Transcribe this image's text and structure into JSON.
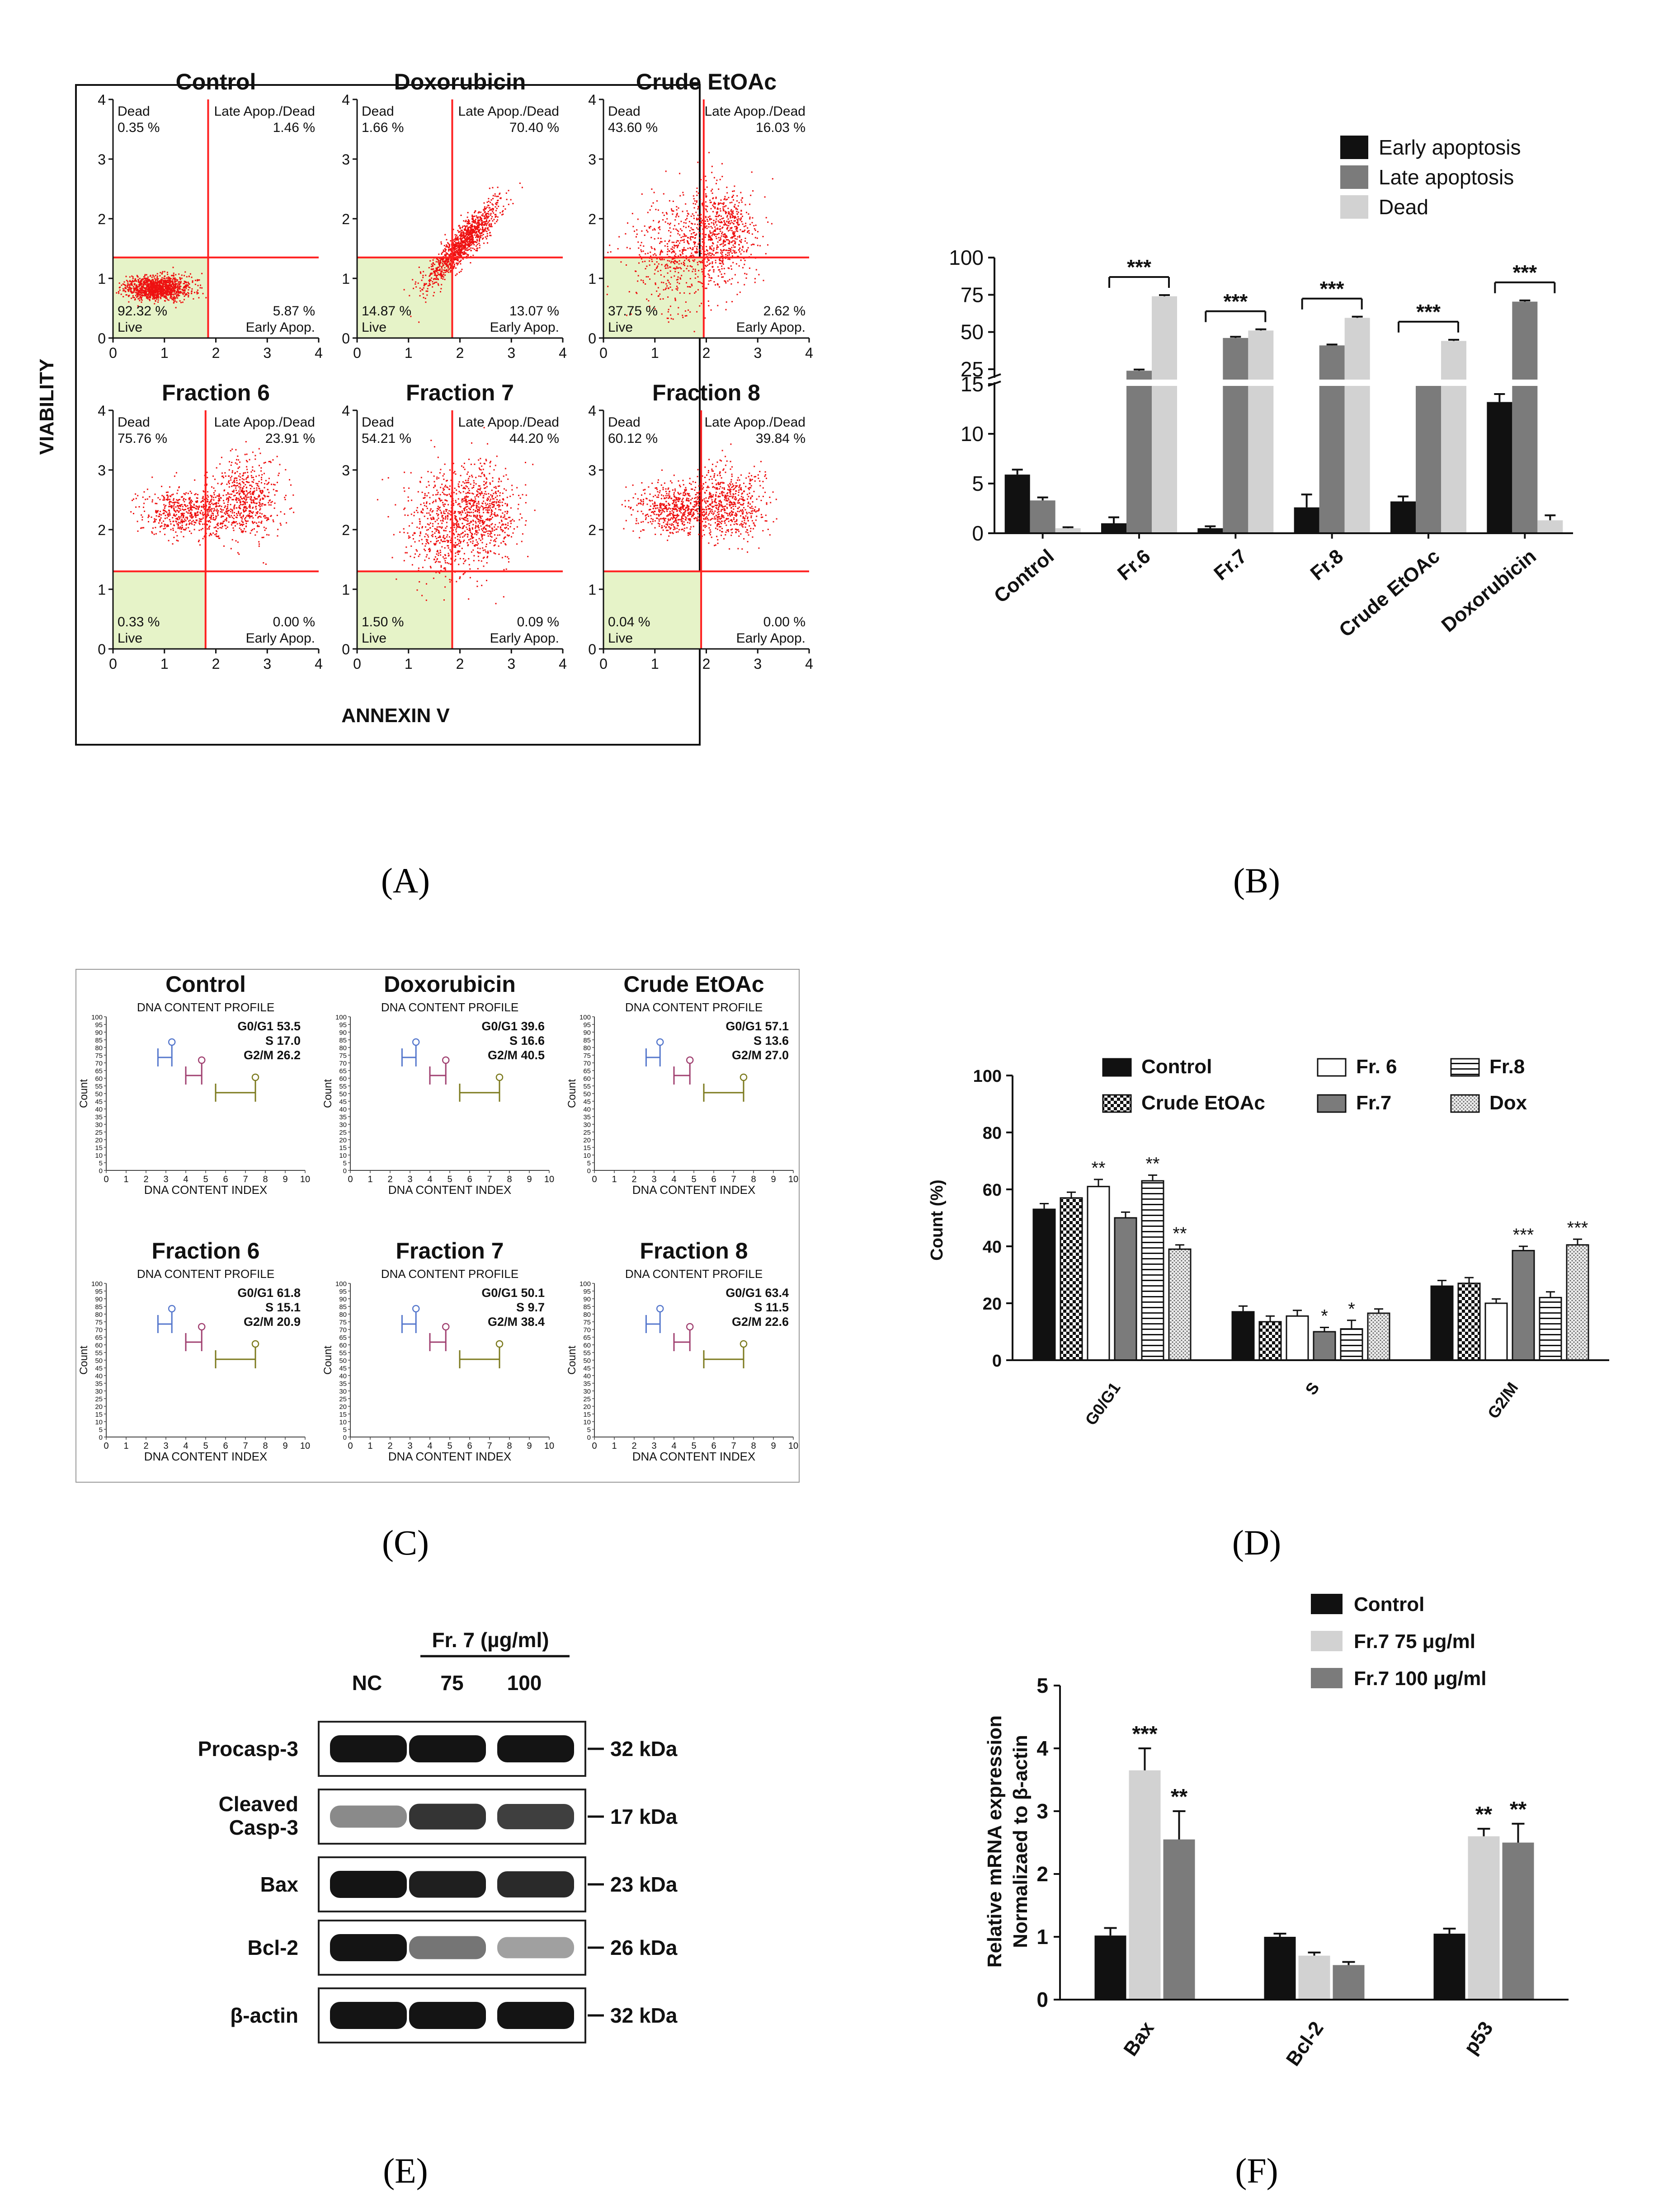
{
  "panel_labels": [
    "(A)",
    "(B)",
    "(C)",
    "(D)",
    "(E)",
    "(F)"
  ],
  "colors": {
    "red": "#ff2020",
    "dot": "#ee1111",
    "green_fill": "#e6f3c8",
    "black": "#111111",
    "dark_gray": "#7b7b7b",
    "light_gray": "#d2d2d2",
    "blue_hist": "#4a6fc0",
    "maroon_hist": "#9a3a5a",
    "olive_hist": "#7c7a1e"
  },
  "chart_data": [
    {
      "id": "A",
      "type": "scatter",
      "title": "",
      "xlabel": "ANNEXIN V",
      "ylabel": "VIABILITY",
      "x_ticks": [
        "0",
        "1",
        "2",
        "3",
        "4"
      ],
      "y_ticks": [
        "0",
        "1",
        "2",
        "3",
        "4"
      ],
      "xlim": [
        0,
        4
      ],
      "ylim": [
        0,
        4
      ],
      "quadrant_labels": {
        "ul": "Dead",
        "ur": "Late Apop./Dead",
        "ll": "Live",
        "lr": "Early Apop."
      },
      "plots": [
        {
          "title": "Control",
          "dead": "0.35 %",
          "late": "1.46 %",
          "live": "92.32 %",
          "early": "5.87 %",
          "gate": [
            1.85,
            1.35
          ]
        },
        {
          "title": "Doxorubicin",
          "dead": "1.66 %",
          "late": "70.40 %",
          "live": "14.87 %",
          "early": "13.07 %",
          "gate": [
            1.85,
            1.35
          ]
        },
        {
          "title": "Crude EtOAc",
          "dead": "43.60 %",
          "late": "16.03 %",
          "live": "37.75 %",
          "early": "2.62 %",
          "gate": [
            1.95,
            1.35
          ]
        },
        {
          "title": "Fraction 6",
          "dead": "75.76 %",
          "late": "23.91 %",
          "live": "0.33 %",
          "early": "0.00 %",
          "gate": [
            1.8,
            1.3
          ]
        },
        {
          "title": "Fraction 7",
          "dead": "54.21 %",
          "late": "44.20 %",
          "live": "1.50 %",
          "early": "0.09 %",
          "gate": [
            1.85,
            1.3
          ]
        },
        {
          "title": "Fraction 8",
          "dead": "60.12 %",
          "late": "39.84 %",
          "live": "0.04 %",
          "early": "0.00 %",
          "gate": [
            1.9,
            1.3
          ]
        }
      ]
    },
    {
      "id": "B",
      "type": "bar",
      "categories": [
        "Control",
        "Fr.6",
        "Fr.7",
        "Fr.8",
        "Crude EtOAc",
        "Doxorubicin"
      ],
      "series": [
        {
          "name": "Early apoptosis",
          "values": [
            5.9,
            1.0,
            0.5,
            2.6,
            3.2,
            13.2
          ],
          "errors": [
            0.5,
            0.6,
            0.2,
            1.3,
            0.5,
            0.8
          ]
        },
        {
          "name": "Late apoptosis",
          "values": [
            3.3,
            24.0,
            46.0,
            41.0,
            16.0,
            70.4
          ],
          "errors": [
            0.3,
            0.8,
            0.8,
            0.6,
            0.8,
            0.8
          ]
        },
        {
          "name": "Dead",
          "values": [
            0.5,
            74.0,
            51.0,
            59.5,
            44.0,
            1.3
          ],
          "errors": [
            0.1,
            0.8,
            0.8,
            0.8,
            0.8,
            0.5
          ]
        }
      ],
      "y_ticks_lower": [
        "0",
        "5",
        "10",
        "15"
      ],
      "y_ticks_upper": [
        "25",
        "50",
        "75",
        "100"
      ],
      "ylim_lower": [
        0,
        15
      ],
      "ylim_upper": [
        15,
        100
      ],
      "significance": [
        "***",
        "***",
        "***",
        "***",
        "***"
      ],
      "xlabel": "",
      "ylabel": ""
    },
    {
      "id": "C",
      "type": "area",
      "plot_title": "DNA CONTENT PROFILE",
      "xlabel": "DNA CONTENT INDEX",
      "ylabel": "Count",
      "x_ticks": [
        "0",
        "1",
        "2",
        "3",
        "4",
        "5",
        "6",
        "7",
        "8",
        "9",
        "10"
      ],
      "y_ticks": [
        "0",
        "5",
        "10",
        "15",
        "20",
        "25",
        "30",
        "35",
        "40",
        "45",
        "50",
        "55",
        "60",
        "65",
        "70",
        "75",
        "80",
        "85",
        "90",
        "95",
        "100"
      ],
      "xlim": [
        0,
        10
      ],
      "ylim": [
        0,
        100
      ],
      "plots": [
        {
          "title": "Control",
          "g0g1": "G0/G1 53.5",
          "s": "S 17.0",
          "g2m": "G2/M 26.2"
        },
        {
          "title": "Doxorubicin",
          "g0g1": "G0/G1 39.6",
          "s": "S 16.6",
          "g2m": "G2/M 40.5"
        },
        {
          "title": "Crude EtOAc",
          "g0g1": "G0/G1 57.1",
          "s": "S 13.6",
          "g2m": "G2/M 27.0"
        },
        {
          "title": "Fraction 6",
          "g0g1": "G0/G1 61.8",
          "s": "S 15.1",
          "g2m": "G2/M 20.9"
        },
        {
          "title": "Fraction 7",
          "g0g1": "G0/G1 50.1",
          "s": "S 9.7",
          "g2m": "G2/M 38.4"
        },
        {
          "title": "Fraction 8",
          "g0g1": "G0/G1 63.4",
          "s": "S 11.5",
          "g2m": "G2/M 22.6"
        }
      ]
    },
    {
      "id": "D",
      "type": "bar",
      "categories": [
        "G0/G1",
        "S",
        "G2/M"
      ],
      "series": [
        {
          "name": "Control",
          "values": [
            53,
            17,
            26
          ],
          "errors": [
            2,
            2,
            2
          ],
          "stars": [
            "",
            "",
            ""
          ]
        },
        {
          "name": "Crude EtOAc",
          "values": [
            57,
            13.5,
            27
          ],
          "errors": [
            2,
            2,
            2
          ],
          "stars": [
            "",
            "",
            ""
          ]
        },
        {
          "name": "Fr. 6",
          "values": [
            61,
            15.5,
            20
          ],
          "errors": [
            2.5,
            2,
            1.5
          ],
          "stars": [
            "**",
            "",
            ""
          ]
        },
        {
          "name": "Fr.7",
          "values": [
            50,
            10,
            38.5
          ],
          "errors": [
            2,
            1.5,
            1.5
          ],
          "stars": [
            "",
            "*",
            "***"
          ]
        },
        {
          "name": "Fr.8",
          "values": [
            63,
            11,
            22
          ],
          "errors": [
            2,
            3,
            2
          ],
          "stars": [
            "**",
            "*",
            ""
          ]
        },
        {
          "name": "Dox",
          "values": [
            39,
            16.5,
            40.5
          ],
          "errors": [
            1.5,
            1.5,
            2
          ],
          "stars": [
            "**",
            "",
            "***"
          ]
        }
      ],
      "ylabel": "Count (%)",
      "xlabel": "",
      "y_ticks": [
        "0",
        "20",
        "40",
        "60",
        "80",
        "100"
      ],
      "ylim": [
        0,
        100
      ]
    },
    {
      "id": "E",
      "type": "table",
      "header": "Fr. 7 (µg/ml)",
      "lanes": [
        "NC",
        "75",
        "100"
      ],
      "rows": [
        {
          "label": "Procasp-3",
          "size": "32 kDa",
          "intensity": [
            1.0,
            1.0,
            1.0
          ]
        },
        {
          "label": "Cleaved Casp-3",
          "label_lines": [
            "Cleaved",
            "Casp-3"
          ],
          "size": "17 kDa",
          "intensity": [
            0.45,
            0.85,
            0.8
          ]
        },
        {
          "label": "Bax",
          "size": "23 kDa",
          "intensity": [
            1.0,
            0.95,
            0.9
          ]
        },
        {
          "label": "Bcl-2",
          "size": "26 kDa",
          "intensity": [
            1.0,
            0.55,
            0.35
          ]
        },
        {
          "label": "β-actin",
          "size": "32 kDa",
          "intensity": [
            1.0,
            1.0,
            1.0
          ]
        }
      ]
    },
    {
      "id": "F",
      "type": "bar",
      "categories": [
        "Bax",
        "Bcl-2",
        "p53"
      ],
      "series": [
        {
          "name": "Control",
          "values": [
            1.02,
            1.0,
            1.05
          ],
          "errors": [
            0.12,
            0.05,
            0.08
          ],
          "stars": [
            "",
            "",
            ""
          ]
        },
        {
          "name": "Fr.7 75 μg/ml",
          "values": [
            3.65,
            0.7,
            2.6
          ],
          "errors": [
            0.35,
            0.05,
            0.12
          ],
          "stars": [
            "***",
            "",
            "**"
          ]
        },
        {
          "name": "Fr.7 100 μg/ml",
          "values": [
            2.55,
            0.55,
            2.5
          ],
          "errors": [
            0.45,
            0.05,
            0.3
          ],
          "stars": [
            "**",
            "",
            "**"
          ]
        }
      ],
      "ylabel_lines": [
        "Relative mRNA expression",
        "Normalizaed to β-actin"
      ],
      "xlabel": "",
      "y_ticks": [
        "0",
        "1",
        "2",
        "3",
        "4",
        "5"
      ],
      "ylim": [
        0,
        5
      ]
    }
  ]
}
